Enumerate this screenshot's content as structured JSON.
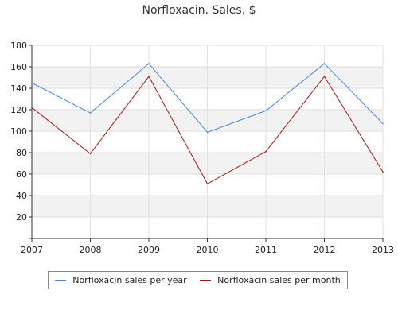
{
  "chart_data": {
    "type": "line",
    "title": "Norfloxacin. Sales, $",
    "xlabel": "",
    "ylabel": "",
    "x": [
      "2007",
      "2008",
      "2009",
      "2010",
      "2011",
      "2012",
      "2013"
    ],
    "xlim": [
      2007,
      2013
    ],
    "ylim": [
      0,
      180
    ],
    "yticks": [
      20,
      40,
      60,
      80,
      100,
      120,
      140,
      160,
      180
    ],
    "grid": true,
    "banded_background": true,
    "legend_position": "bottom",
    "series": [
      {
        "name": "Norfloxacin sales per year",
        "color": "#4a86d8",
        "values": [
          145,
          117,
          163,
          99,
          119,
          163,
          107
        ]
      },
      {
        "name": "Norfloxacin sales per month",
        "color": "#a21b1b",
        "values": [
          122,
          79,
          151,
          51,
          81,
          151,
          62
        ]
      }
    ]
  }
}
